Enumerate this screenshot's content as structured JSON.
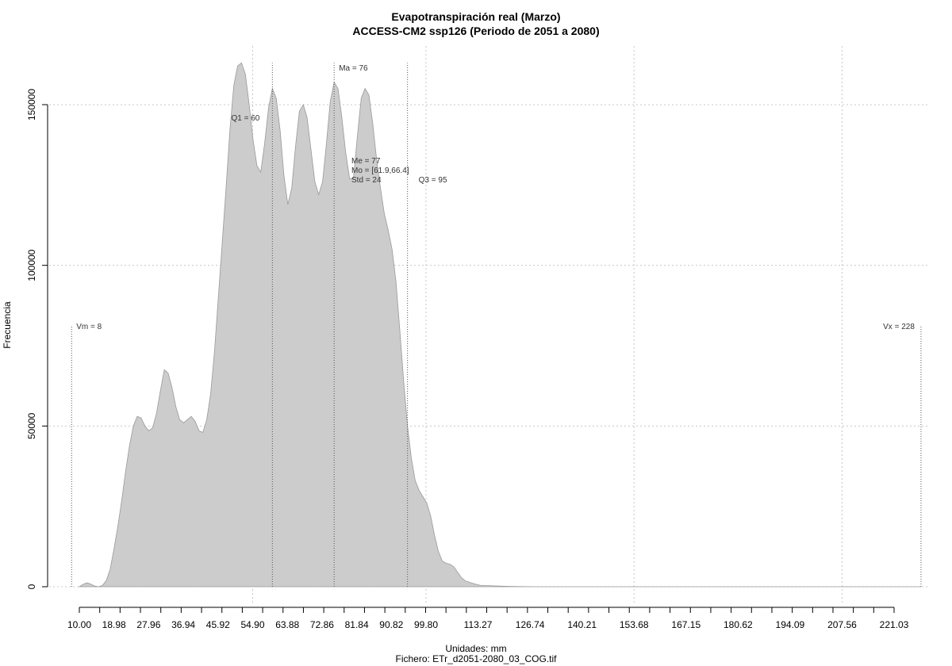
{
  "chart_data": {
    "type": "area",
    "title": "Evapotranspiración real (Marzo)",
    "subtitle": "ACCESS-CM2 ssp126 (Periodo de 2051 a 2080)",
    "xlabel": "Unidades: mm",
    "ylabel": "Frecuencia",
    "caption": "Fichero: ETr_d2051-2080_03_COG.tif",
    "xlim": [
      10,
      232
    ],
    "ylim": [
      0,
      163000
    ],
    "grid": true,
    "x_tick_labels": [
      "10.00",
      "18.98",
      "27.96",
      "36.94",
      "45.92",
      "54.90",
      "63.88",
      "72.86",
      "81.84",
      "90.82",
      "99.80",
      "113.27",
      "126.74",
      "140.21",
      "153.68",
      "167.15",
      "180.62",
      "194.09",
      "207.56",
      "221.03"
    ],
    "y_tick_labels": [
      "0",
      "50000",
      "100000",
      "150000"
    ],
    "series": [
      {
        "x": [
          10,
          11,
          12,
          13,
          14,
          15,
          16,
          17,
          18,
          19,
          20,
          21,
          22,
          23,
          24,
          25,
          26,
          27,
          28,
          29,
          30,
          31,
          32,
          33,
          34,
          35,
          36,
          37,
          38,
          39,
          40,
          41,
          42,
          43,
          44,
          45,
          46,
          47,
          48,
          49,
          50,
          51,
          52,
          53,
          54,
          55,
          56,
          57,
          58,
          59,
          60,
          61,
          62,
          63,
          64,
          65,
          66,
          67,
          68,
          69,
          70,
          71,
          72,
          73,
          74,
          75,
          76,
          77,
          78,
          79,
          80,
          81,
          82,
          83,
          84,
          85,
          86,
          87,
          88,
          89,
          90,
          91,
          92,
          93,
          94,
          95,
          96,
          97,
          98,
          99,
          100,
          101,
          102,
          103,
          104,
          105,
          106,
          107,
          108,
          109,
          110,
          111,
          112,
          113,
          114,
          116,
          118,
          120,
          122,
          124,
          126,
          128,
          130,
          132,
          134,
          136,
          138,
          140,
          145,
          150,
          155,
          160,
          170,
          180,
          190,
          200,
          210,
          220,
          228
        ],
        "y": [
          0,
          800,
          1200,
          800,
          200,
          0,
          400,
          2000,
          5500,
          12000,
          19000,
          27000,
          36000,
          44000,
          50000,
          53000,
          52500,
          50000,
          48500,
          49500,
          54000,
          61000,
          67500,
          66500,
          62000,
          56000,
          52000,
          51000,
          52000,
          53000,
          51500,
          48500,
          48000,
          52000,
          60000,
          73000,
          90000,
          107000,
          124000,
          142000,
          156000,
          162000,
          163000,
          159500,
          150000,
          139000,
          131000,
          129000,
          138000,
          149000,
          155000,
          152000,
          142000,
          128000,
          119000,
          124000,
          137000,
          148000,
          150000,
          146000,
          136000,
          126000,
          122000,
          126000,
          138000,
          151000,
          157000,
          155000,
          146000,
          135000,
          127000,
          127000,
          140000,
          152000,
          155000,
          153000,
          144000,
          133000,
          124000,
          116000,
          111000,
          105000,
          95000,
          80000,
          64000,
          50000,
          40000,
          33000,
          30000,
          28000,
          26000,
          22000,
          16000,
          11000,
          8000,
          7300,
          7000,
          6200,
          4500,
          2800,
          1800,
          1400,
          1000,
          700,
          400,
          350,
          250,
          150,
          80,
          40,
          20,
          10,
          5,
          0,
          0,
          0,
          0,
          0,
          0,
          0,
          0,
          0,
          0,
          0,
          0,
          0,
          0,
          0,
          0
        ],
        "color": "#cccccc",
        "line_color": "#999999"
      }
    ],
    "vlines": [
      {
        "x": 8,
        "label": "Vm = 8",
        "height": 81000
      },
      {
        "x": 60,
        "label": "Q1 = 60",
        "height": 163000
      },
      {
        "x": 76,
        "label": "Ma = 76",
        "height": 163000
      },
      {
        "x": 95,
        "label": "Q3 = 95",
        "height": 163000
      },
      {
        "x": 228,
        "label": "Vx = 228",
        "height": 81000
      }
    ],
    "stats": [
      "Me = 77",
      "Mo = [61.9,66.4]",
      "Std = 24"
    ]
  }
}
